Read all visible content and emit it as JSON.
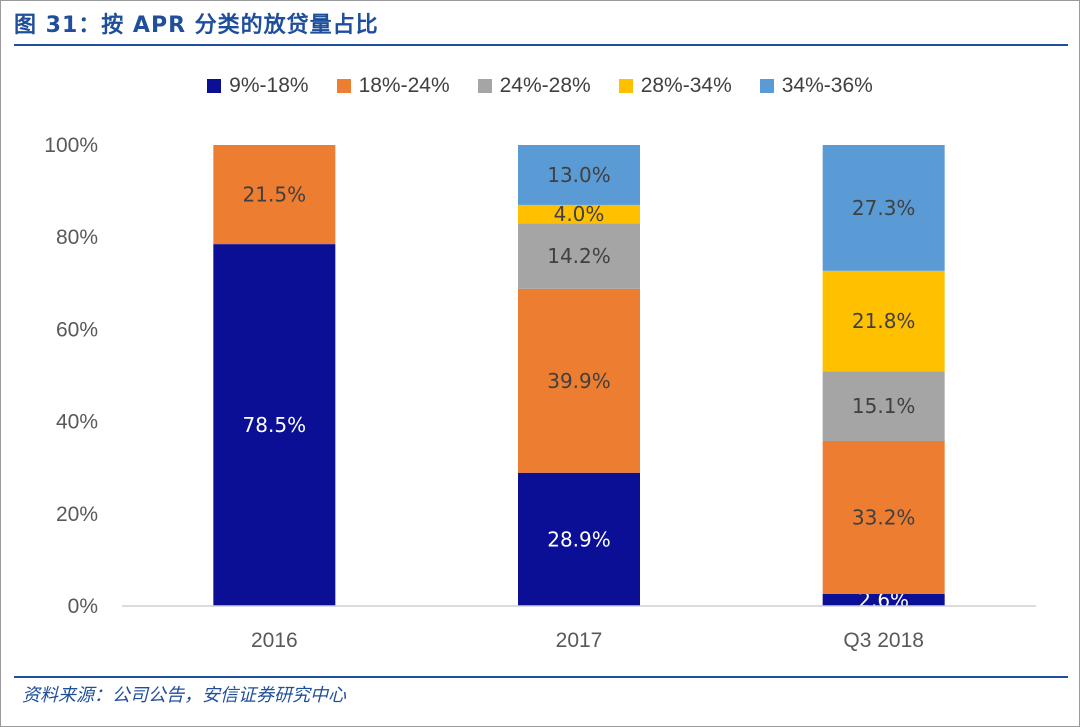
{
  "title": "图 31：按 APR 分类的放贷量占比",
  "source": "资料来源：公司公告，安信证券研究中心",
  "chart_data": {
    "type": "bar",
    "stacked": true,
    "categories": [
      "2016",
      "2017",
      "Q3 2018"
    ],
    "ylim": [
      0,
      100
    ],
    "yticks": [
      "0%",
      "20%",
      "40%",
      "60%",
      "80%",
      "100%"
    ],
    "series": [
      {
        "name": "9%-18%",
        "color": "#0a0f96",
        "labelColor": "#ffffff",
        "values": [
          78.5,
          28.9,
          2.6
        ],
        "labels": [
          "78.5%",
          "28.9%",
          "2.6%"
        ]
      },
      {
        "name": "18%-24%",
        "color": "#ed7d31",
        "labelColor": "#404040",
        "values": [
          21.5,
          39.9,
          33.2
        ],
        "labels": [
          "21.5%",
          "39.9%",
          "33.2%"
        ]
      },
      {
        "name": "24%-28%",
        "color": "#a5a5a5",
        "labelColor": "#404040",
        "values": [
          0,
          14.2,
          15.1
        ],
        "labels": [
          "",
          "14.2%",
          "15.1%"
        ]
      },
      {
        "name": "28%-34%",
        "color": "#ffc000",
        "labelColor": "#404040",
        "values": [
          0,
          4.0,
          21.8
        ],
        "labels": [
          "",
          "4.0%",
          "21.8%"
        ]
      },
      {
        "name": "34%-36%",
        "color": "#5b9bd5",
        "labelColor": "#404040",
        "values": [
          0,
          13.0,
          27.3
        ],
        "labels": [
          "",
          "13.0%",
          "27.3%"
        ]
      }
    ]
  }
}
